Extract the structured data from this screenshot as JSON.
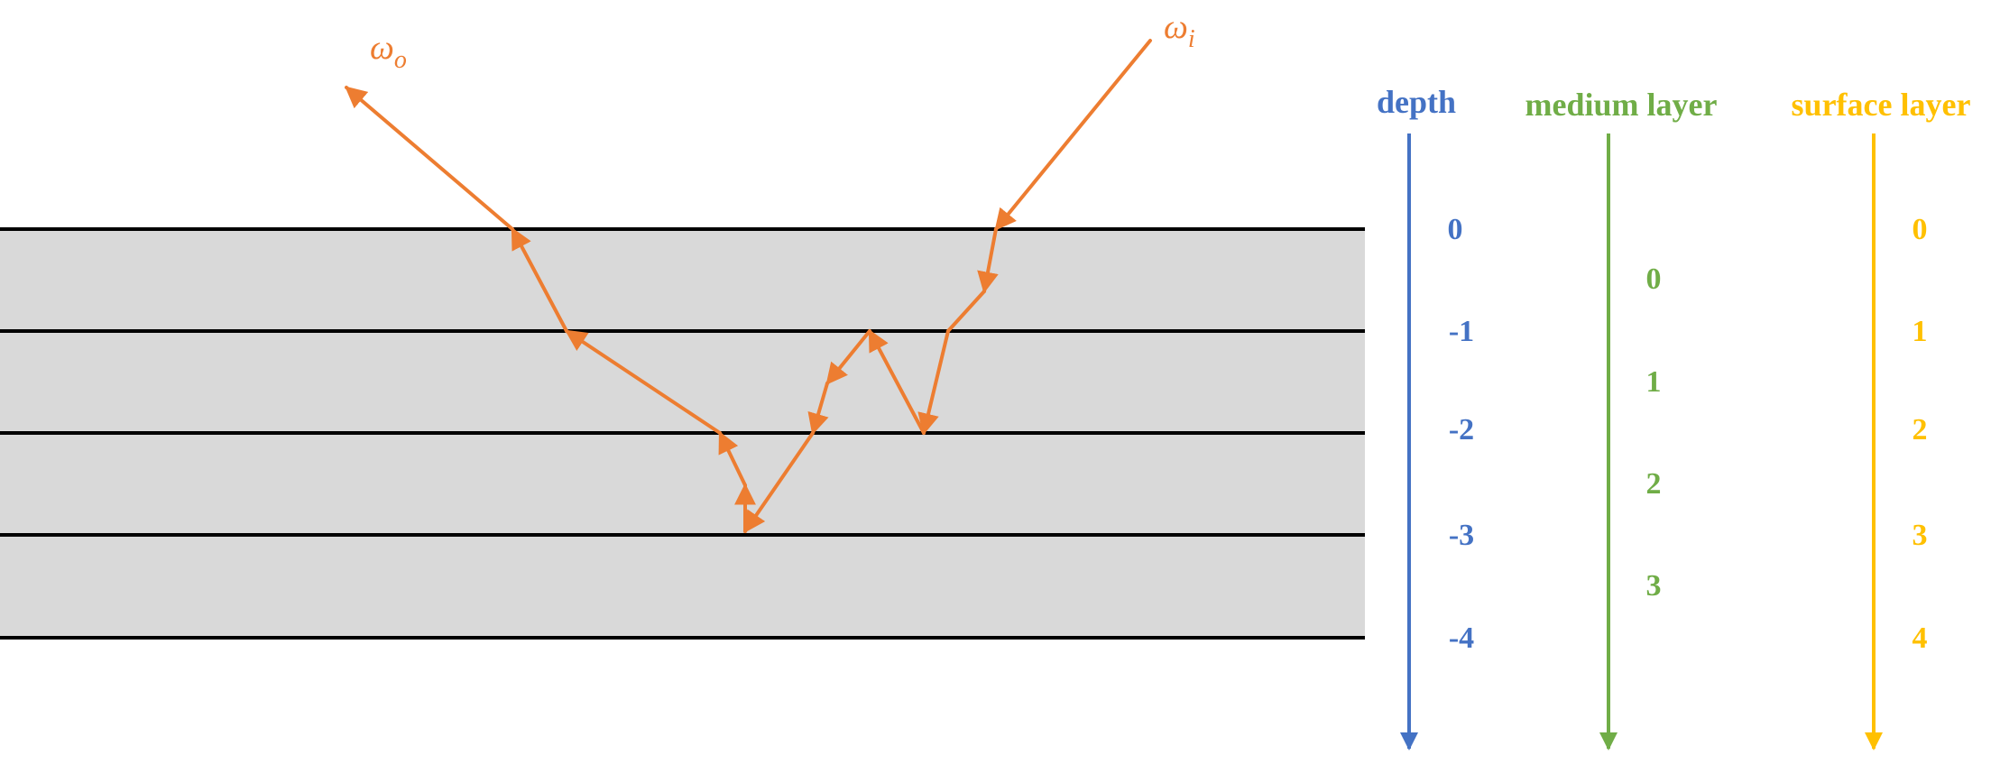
{
  "colors": {
    "ray": "#ed7d31",
    "depth": "#4472c4",
    "medium": "#70ad47",
    "surface": "#ffc000",
    "layer_fill": "#d9d9d9",
    "layer_line": "#000000"
  },
  "labels": {
    "omega_o_symbol": "ω",
    "omega_o_sub": "o",
    "omega_i_symbol": "ω",
    "omega_i_sub": "i"
  },
  "legend": {
    "depth": {
      "title": "depth",
      "values": [
        "0",
        "-1",
        "-2",
        "-3",
        "-4"
      ]
    },
    "medium": {
      "title": "medium layer",
      "values": [
        "0",
        "1",
        "2",
        "3"
      ]
    },
    "surface": {
      "title": "surface layer",
      "values": [
        "0",
        "1",
        "2",
        "3",
        "4"
      ]
    }
  }
}
